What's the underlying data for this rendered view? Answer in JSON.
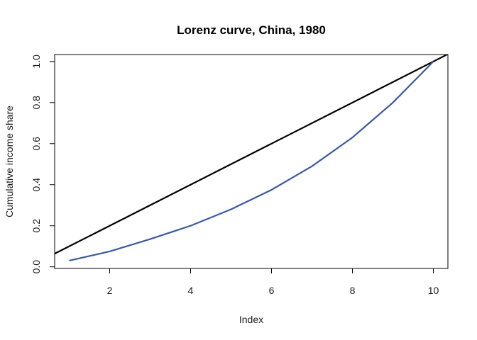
{
  "chart_data": {
    "type": "line",
    "title": "Lorenz curve, China, 1980",
    "xlabel": "Index",
    "ylabel": "Cumulative income share",
    "xlim": [
      0.64,
      10.36
    ],
    "ylim": [
      -0.008,
      1.034
    ],
    "x_ticks": [
      2,
      4,
      6,
      8,
      10
    ],
    "y_ticks": [
      0.0,
      0.2,
      0.4,
      0.6,
      0.8,
      1.0
    ],
    "grid": false,
    "legend": "none",
    "reference_line": {
      "intercept": 0,
      "slope": 0.1,
      "color": "#000000"
    },
    "series": [
      {
        "color": "#3a5aa0",
        "x": [
          1,
          2,
          3,
          4,
          5,
          6,
          7,
          8,
          9,
          10
        ],
        "y": [
          0.03,
          0.075,
          0.135,
          0.2,
          0.28,
          0.375,
          0.49,
          0.63,
          0.8,
          1.0
        ]
      }
    ]
  }
}
